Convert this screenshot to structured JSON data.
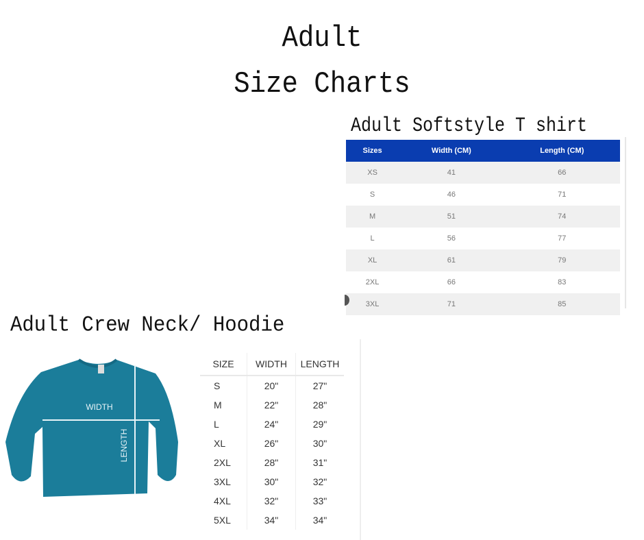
{
  "title": {
    "line1": "Adult",
    "line2": "Size Charts"
  },
  "softstyle": {
    "title": "Adult Softstyle T shirt",
    "header_color": "#0a3db0",
    "columns": [
      "Sizes",
      "Width (CM)",
      "Length (CM)"
    ],
    "rows": [
      [
        "XS",
        "41",
        "66"
      ],
      [
        "S",
        "46",
        "71"
      ],
      [
        "M",
        "51",
        "74"
      ],
      [
        "L",
        "56",
        "77"
      ],
      [
        "XL",
        "61",
        "79"
      ],
      [
        "2XL",
        "66",
        "83"
      ],
      [
        "3XL",
        "71",
        "85"
      ]
    ]
  },
  "crew": {
    "title": "Adult Crew Neck/ Hoodie",
    "shirt_color": "#1b7d9a",
    "image_labels": {
      "width": "WIDTH",
      "length": "LENGTH"
    },
    "columns": [
      "SIZE",
      "WIDTH",
      "LENGTH"
    ],
    "rows": [
      [
        "S",
        "20\"",
        "27\""
      ],
      [
        "M",
        "22\"",
        "28\""
      ],
      [
        "L",
        "24\"",
        "29\""
      ],
      [
        "XL",
        "26\"",
        "30\""
      ],
      [
        "2XL",
        "28\"",
        "31\""
      ],
      [
        "3XL",
        "30\"",
        "32\""
      ],
      [
        "4XL",
        "32\"",
        "33\""
      ],
      [
        "5XL",
        "34\"",
        "34\""
      ]
    ]
  }
}
